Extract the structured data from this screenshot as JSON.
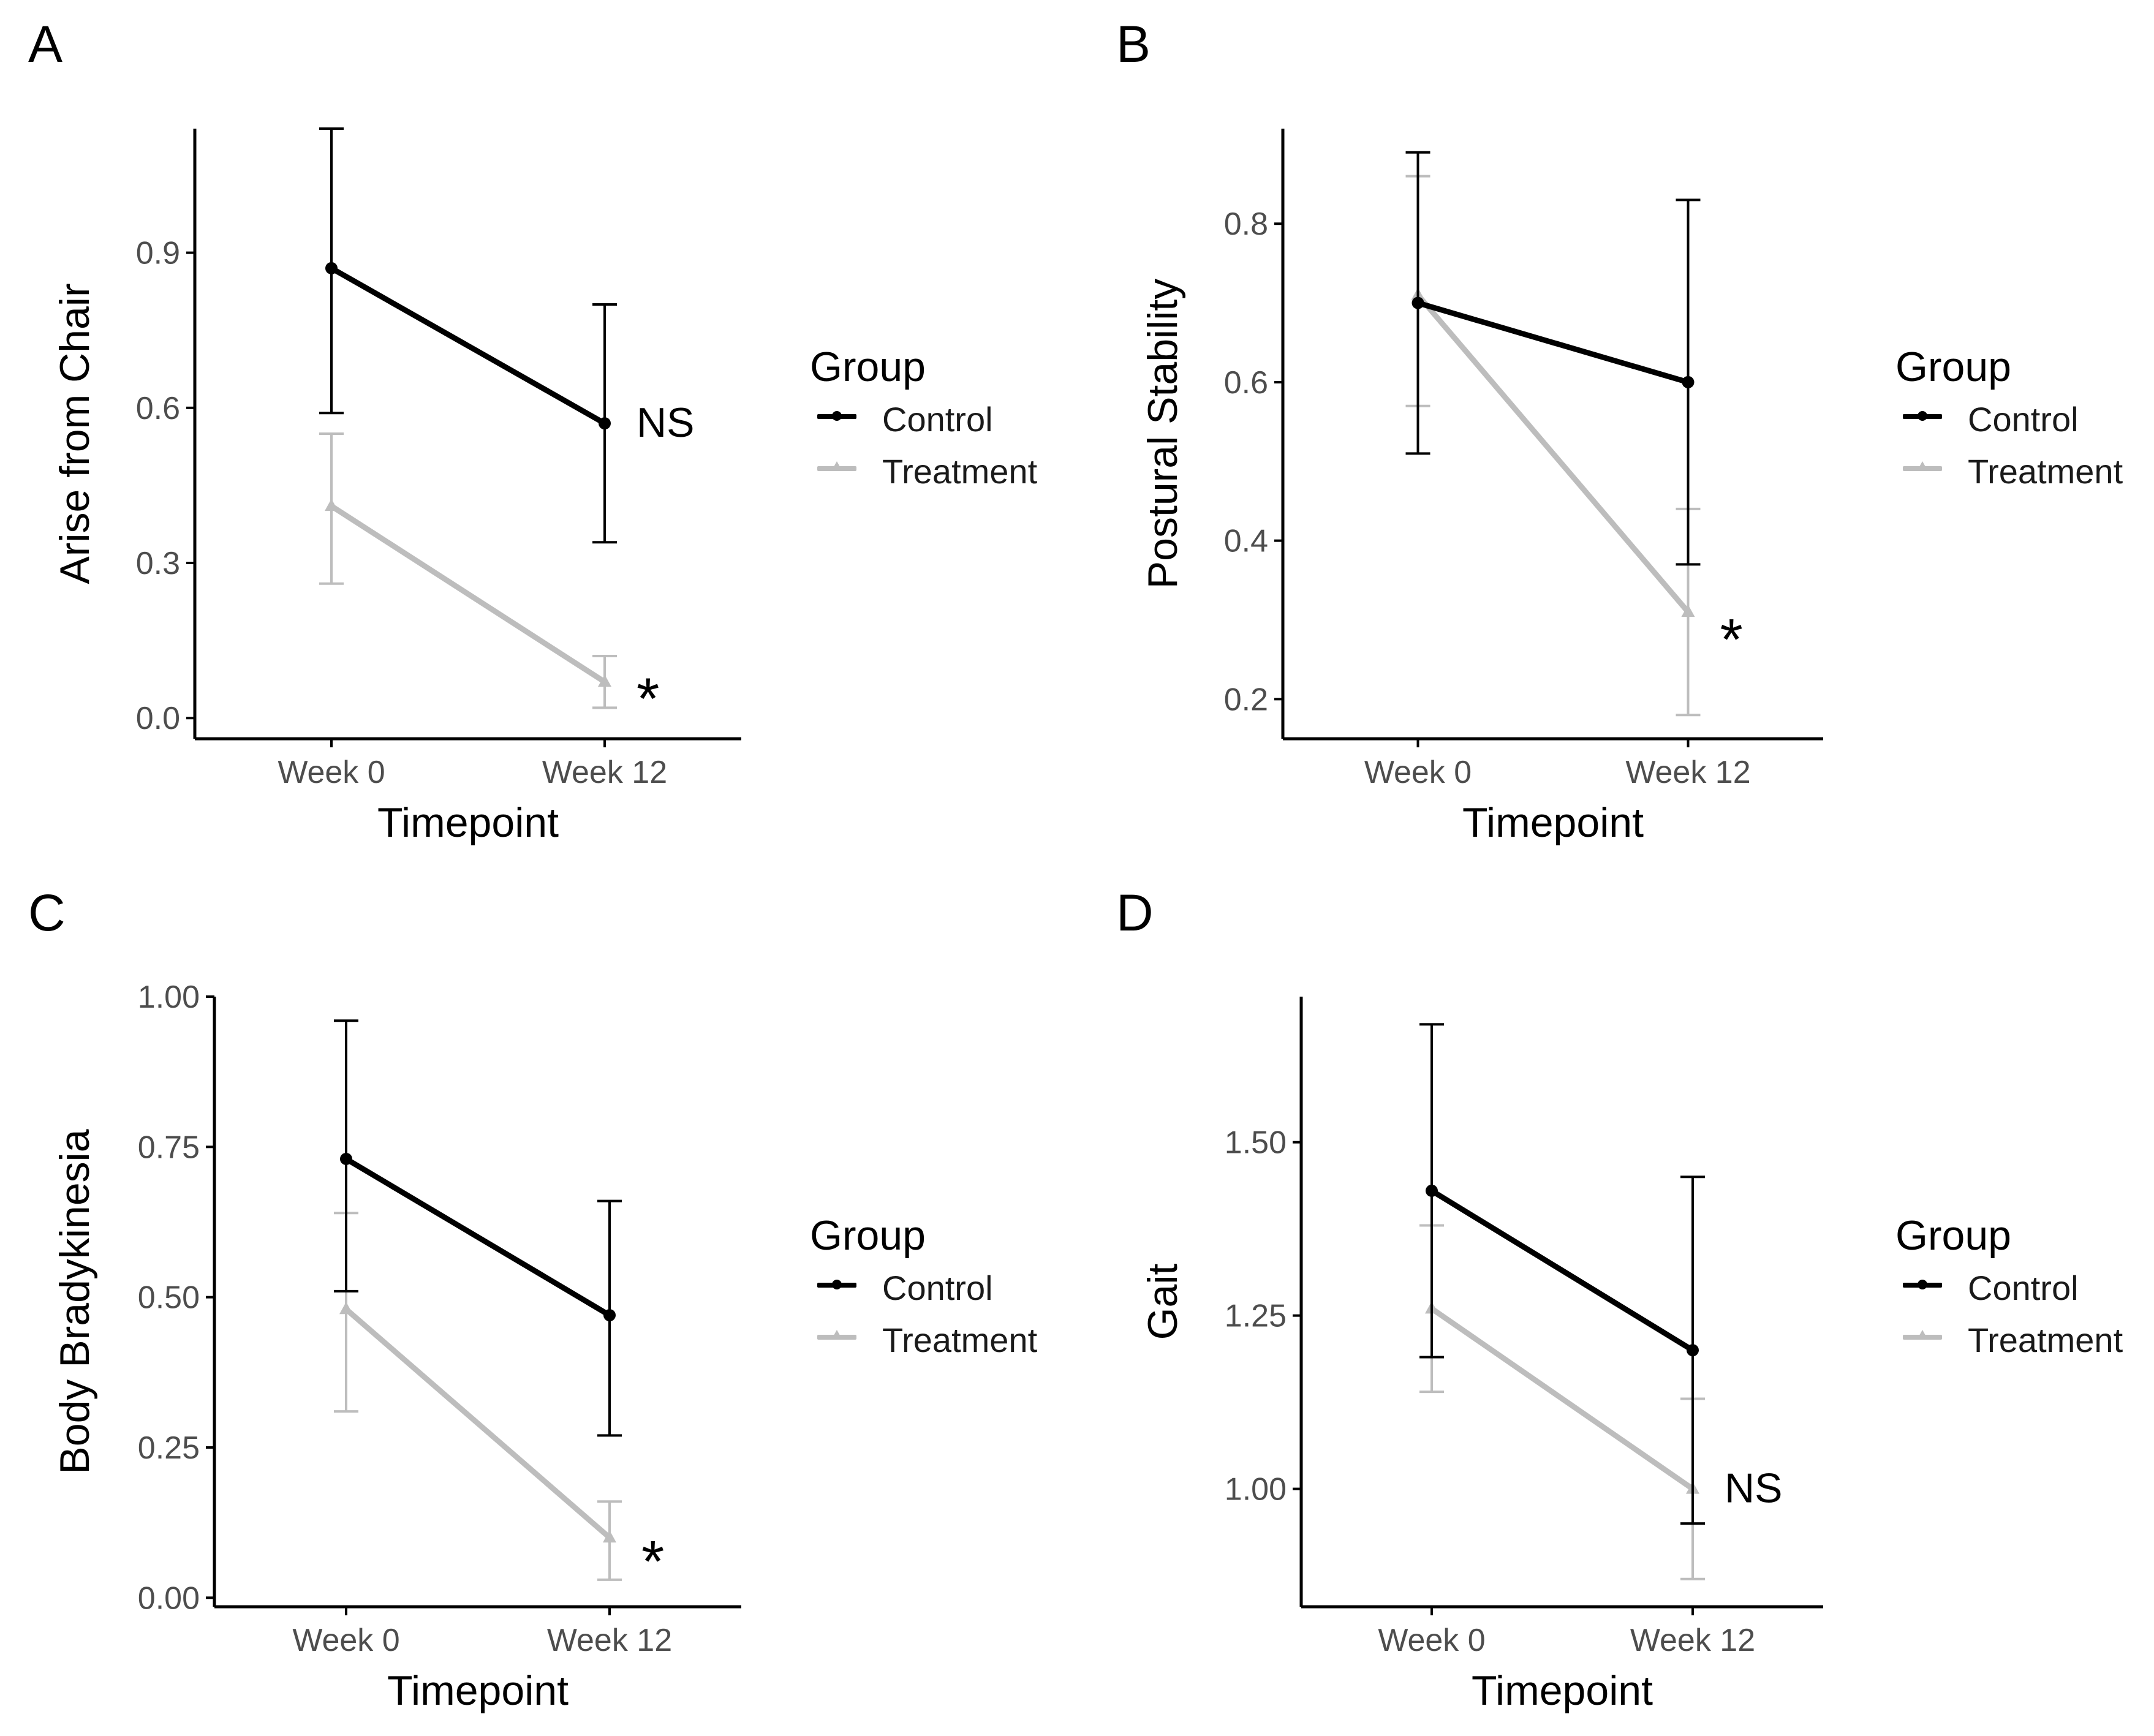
{
  "colors": {
    "control": "#000000",
    "treatment": "#bdbdbd",
    "axis": "#000000",
    "tick_label": "#4d4d4d"
  },
  "legend": {
    "title": "Group",
    "items": [
      {
        "label": "Control",
        "series": "control"
      },
      {
        "label": "Treatment",
        "series": "treatment"
      }
    ]
  },
  "chart_data": [
    {
      "panel_label": "A",
      "type": "line",
      "title": "",
      "xlabel": "Timepoint",
      "ylabel": "Arise from Chair",
      "categories": [
        "Week 0",
        "Week 12"
      ],
      "ylim": [
        -0.04,
        1.14
      ],
      "yticks": [
        0.0,
        0.3,
        0.6,
        0.9
      ],
      "ytick_labels": [
        "0.0",
        "0.3",
        "0.6",
        "0.9"
      ],
      "series": [
        {
          "name": "Control",
          "key": "control",
          "values": [
            0.87,
            0.57
          ],
          "err_low": [
            0.59,
            0.34
          ],
          "err_high": [
            1.14,
            0.8
          ]
        },
        {
          "name": "Treatment",
          "key": "treatment",
          "values": [
            0.41,
            0.07
          ],
          "err_low": [
            0.26,
            0.02
          ],
          "err_high": [
            0.55,
            0.12
          ]
        }
      ],
      "annotations": [
        {
          "text": "NS",
          "category": "Week 12",
          "y": 0.57
        },
        {
          "text": "*",
          "category": "Week 12",
          "y": 0.06
        }
      ]
    },
    {
      "panel_label": "B",
      "type": "line",
      "title": "",
      "xlabel": "Timepoint",
      "ylabel": "Postural Stability",
      "categories": [
        "Week 0",
        "Week 12"
      ],
      "ylim": [
        0.15,
        0.92
      ],
      "yticks": [
        0.2,
        0.4,
        0.6,
        0.8
      ],
      "ytick_labels": [
        "0.2",
        "0.4",
        "0.6",
        "0.8"
      ],
      "series": [
        {
          "name": "Control",
          "key": "control",
          "values": [
            0.7,
            0.6
          ],
          "err_low": [
            0.51,
            0.37
          ],
          "err_high": [
            0.89,
            0.83
          ]
        },
        {
          "name": "Treatment",
          "key": "treatment",
          "values": [
            0.71,
            0.31
          ],
          "err_low": [
            0.57,
            0.18
          ],
          "err_high": [
            0.86,
            0.44
          ]
        }
      ],
      "annotations": [
        {
          "text": "*",
          "category": "Week 12",
          "y": 0.29
        }
      ]
    },
    {
      "panel_label": "C",
      "type": "line",
      "title": "",
      "xlabel": "Timepoint",
      "ylabel": "Body Bradykinesia",
      "categories": [
        "Week 0",
        "Week 12"
      ],
      "ylim": [
        -0.015,
        1.0
      ],
      "yticks": [
        0.0,
        0.25,
        0.5,
        0.75,
        1.0
      ],
      "ytick_labels": [
        "0.00",
        "0.25",
        "0.50",
        "0.75",
        "1.00"
      ],
      "series": [
        {
          "name": "Control",
          "key": "control",
          "values": [
            0.73,
            0.47
          ],
          "err_low": [
            0.51,
            0.27
          ],
          "err_high": [
            0.96,
            0.66
          ]
        },
        {
          "name": "Treatment",
          "key": "treatment",
          "values": [
            0.48,
            0.1
          ],
          "err_low": [
            0.31,
            0.03
          ],
          "err_high": [
            0.64,
            0.16
          ]
        }
      ],
      "annotations": [
        {
          "text": "*",
          "category": "Week 12",
          "y": 0.08
        }
      ]
    },
    {
      "panel_label": "D",
      "type": "line",
      "title": "",
      "xlabel": "Timepoint",
      "ylabel": "Gait",
      "categories": [
        "Week 0",
        "Week 12"
      ],
      "ylim": [
        0.83,
        1.71
      ],
      "yticks": [
        1.0,
        1.25,
        1.5
      ],
      "ytick_labels": [
        "1.00",
        "1.25",
        "1.50"
      ],
      "series": [
        {
          "name": "Control",
          "key": "control",
          "values": [
            1.43,
            1.2
          ],
          "err_low": [
            1.19,
            0.95
          ],
          "err_high": [
            1.67,
            1.45
          ]
        },
        {
          "name": "Treatment",
          "key": "treatment",
          "values": [
            1.26,
            1.0
          ],
          "err_low": [
            1.14,
            0.87
          ],
          "err_high": [
            1.38,
            1.13
          ]
        }
      ],
      "annotations": [
        {
          "text": "NS",
          "category": "Week 12",
          "y": 1.0
        }
      ]
    }
  ]
}
